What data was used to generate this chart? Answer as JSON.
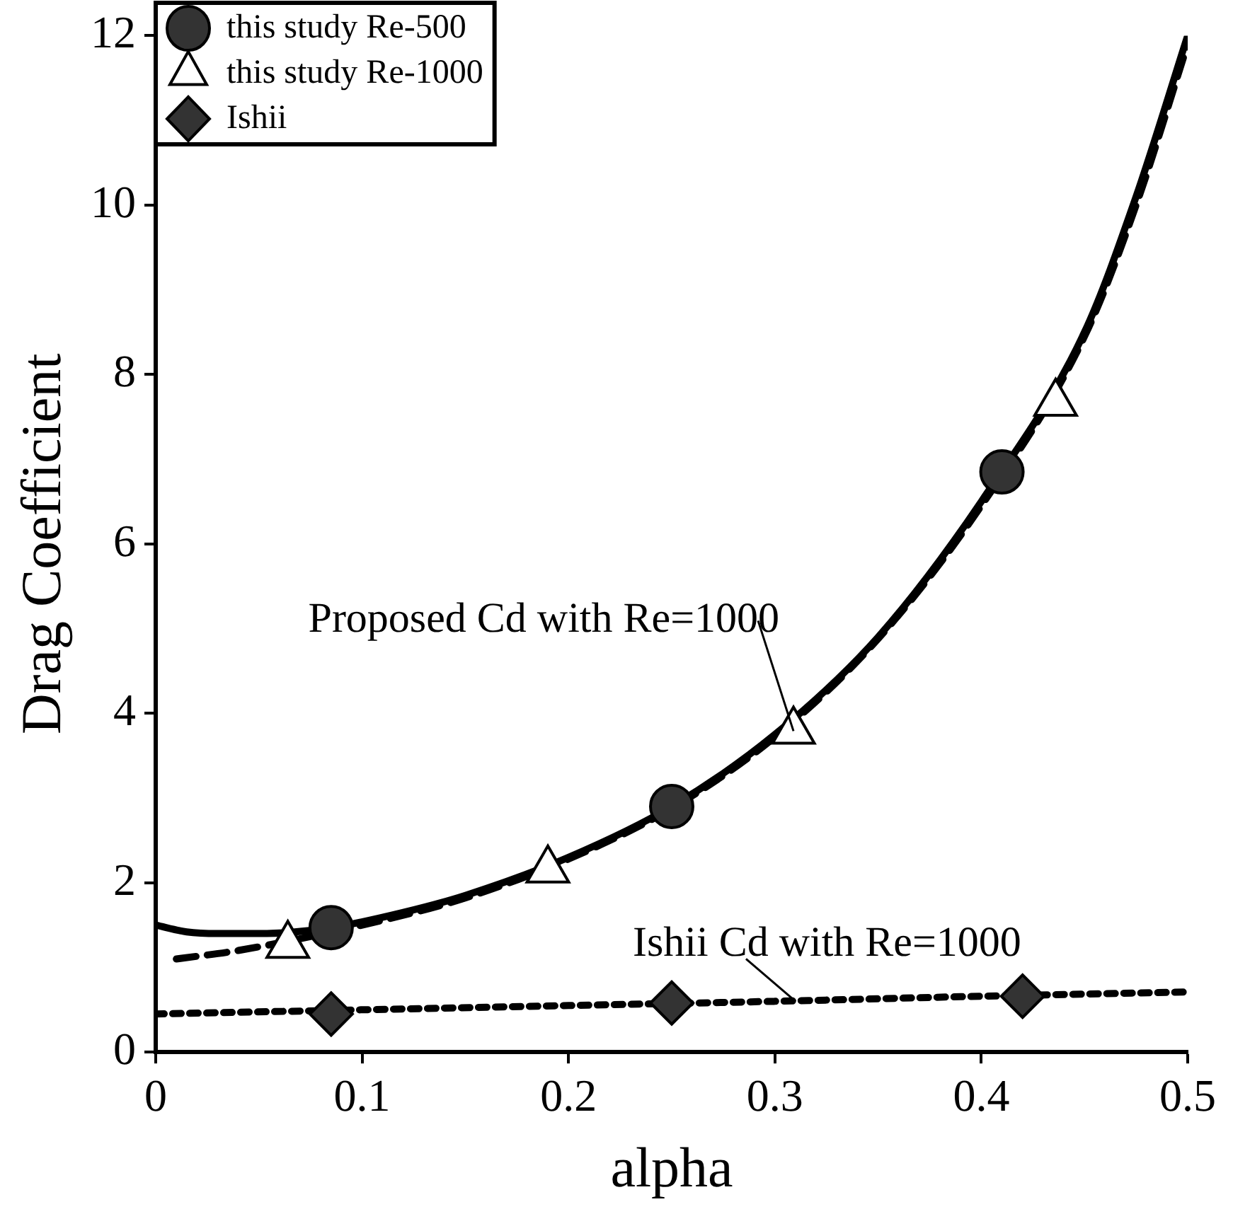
{
  "chart_data": {
    "type": "line",
    "xlabel": "alpha",
    "ylabel": "Drag Coefficient",
    "xlim": [
      0,
      0.5
    ],
    "xticks": [
      0,
      0.1,
      0.2,
      0.3,
      0.4,
      0.5
    ],
    "ylim": [
      0,
      12
    ],
    "yticks": [
      0,
      2,
      4,
      6,
      8,
      10,
      12
    ],
    "grid": false,
    "legend": "top left",
    "series": [
      {
        "color": "#000000",
        "marker": "none",
        "line_style": "solid",
        "x": [
          0,
          0.015,
          0.03,
          0.05,
          0.085,
          0.12,
          0.15,
          0.2,
          0.25,
          0.3,
          0.35,
          0.4,
          0.45,
          0.475,
          0.5
        ],
        "values": [
          1.5,
          1.42,
          1.4,
          1.4,
          1.47,
          1.65,
          1.85,
          2.3,
          2.9,
          3.75,
          4.9,
          6.5,
          8.5,
          10.1,
          12.0
        ]
      },
      {
        "color": "#000000",
        "marker": "none",
        "line_style": "dashed",
        "x": [
          0.01,
          0.04,
          0.1,
          0.15,
          0.2,
          0.25,
          0.3,
          0.35,
          0.4,
          0.45,
          0.475,
          0.5
        ],
        "values": [
          1.1,
          1.2,
          1.5,
          1.82,
          2.28,
          2.88,
          3.72,
          4.88,
          6.45,
          8.45,
          10.0,
          11.9
        ]
      },
      {
        "color": "#000000",
        "marker": "none",
        "line_style": "dotted",
        "x": [
          0,
          0.1,
          0.2,
          0.3,
          0.4,
          0.5
        ],
        "values": [
          0.45,
          0.5,
          0.55,
          0.6,
          0.66,
          0.71
        ]
      },
      {
        "type": "scatter",
        "name": "this study Re-500",
        "color": "#333333",
        "marker": "circle",
        "x": [
          0.085,
          0.25,
          0.41
        ],
        "values": [
          1.47,
          2.9,
          6.85
        ]
      },
      {
        "type": "scatter",
        "name": "this study Re-1000",
        "color": "#ffffff",
        "marker": "triangle",
        "x": [
          0.064,
          0.19,
          0.309,
          0.436
        ],
        "values": [
          1.26,
          2.15,
          3.79,
          7.66
        ]
      },
      {
        "type": "scatter",
        "name": "Ishii",
        "color": "#333333",
        "marker": "diamond",
        "x": [
          0.085,
          0.25,
          0.42
        ],
        "values": [
          0.45,
          0.58,
          0.66
        ]
      }
    ],
    "annotations": [
      {
        "text": "Proposed Cd with Re=1000",
        "x": 0.309,
        "y": 3.79
      },
      {
        "text": "Ishii Cd with Re=1000",
        "x": 0.31,
        "y": 0.6
      }
    ]
  }
}
